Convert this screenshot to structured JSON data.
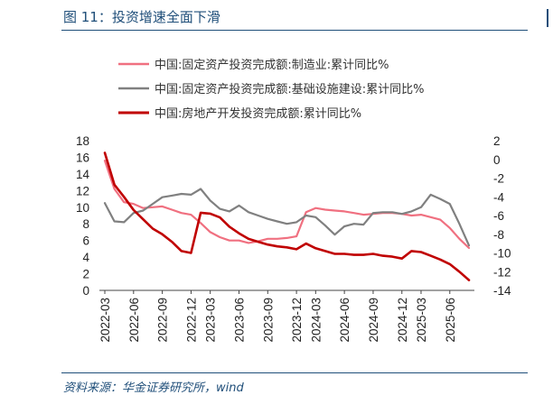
{
  "title": "图 11：投资增速全面下滑",
  "source": "资料来源：华金证券研究所，wind",
  "chart_data": {
    "type": "line",
    "title": "",
    "legend_position": "top-left",
    "grid": false,
    "x": [
      "2022-03",
      "2022-04",
      "2022-05",
      "2022-06",
      "2022-07",
      "2022-08",
      "2022-09",
      "2022-10",
      "2022-11",
      "2022-12",
      "2023-02",
      "2023-03",
      "2023-04",
      "2023-05",
      "2023-06",
      "2023-07",
      "2023-08",
      "2023-09",
      "2023-10",
      "2023-11",
      "2023-12",
      "2024-02",
      "2024-03",
      "2024-04",
      "2024-05",
      "2024-06",
      "2024-07",
      "2024-08",
      "2024-09",
      "2024-10",
      "2024-11",
      "2024-12",
      "2025-02",
      "2025-03",
      "2025-04",
      "2025-05",
      "2025-06",
      "2025-07",
      "2025-08"
    ],
    "xticks": [
      "2022-03",
      "2022-06",
      "2022-09",
      "2022-12",
      "2023-03",
      "2023-06",
      "2023-09",
      "2023-12",
      "2024-03",
      "2024-06",
      "2024-09",
      "2024-12",
      "2025-03",
      "2025-06"
    ],
    "y_left": {
      "min": 0,
      "max": 18,
      "ticks": [
        "0",
        "2",
        "4",
        "6",
        "8",
        "10",
        "12",
        "14",
        "16",
        "18"
      ]
    },
    "y_right": {
      "min": -14,
      "max": 2,
      "ticks": [
        "2",
        "0",
        "-2",
        "-4",
        "-6",
        "-8",
        "-10",
        "-12",
        "-14"
      ]
    },
    "series": [
      {
        "name": "中国:固定资产投资完成额:制造业:累计同比%",
        "axis": "left",
        "color": "#f07080",
        "width": 2.2,
        "values": [
          15.6,
          12.2,
          10.6,
          10.4,
          9.9,
          10.0,
          10.1,
          9.7,
          9.3,
          9.1,
          8.1,
          7.0,
          6.4,
          6.0,
          6.0,
          5.7,
          5.9,
          6.2,
          6.2,
          6.3,
          6.5,
          9.4,
          9.9,
          9.7,
          9.6,
          9.5,
          9.3,
          9.1,
          9.2,
          9.3,
          9.3,
          9.2,
          9.0,
          9.1,
          8.8,
          8.5,
          7.5,
          6.2,
          5.1
        ]
      },
      {
        "name": "中国:固定资产投资完成额:基础设施建设:累计同比%",
        "axis": "left",
        "color": "#808080",
        "width": 2.2,
        "values": [
          10.5,
          8.3,
          8.2,
          9.3,
          9.6,
          10.4,
          11.2,
          11.4,
          11.6,
          11.5,
          12.2,
          10.8,
          9.8,
          9.5,
          10.2,
          9.4,
          9.0,
          8.6,
          8.3,
          8.0,
          8.2,
          9.0,
          8.8,
          7.8,
          6.7,
          7.7,
          8.0,
          7.9,
          9.3,
          9.4,
          9.4,
          9.2,
          9.5,
          10.0,
          11.5,
          11.0,
          10.4,
          8.0,
          5.4
        ]
      },
      {
        "name": "中国:房地产开发投资完成额:累计同比%",
        "axis": "right",
        "color": "#c00000",
        "width": 2.6,
        "values": [
          0.7,
          -2.7,
          -4.0,
          -5.4,
          -6.4,
          -7.4,
          -8.0,
          -8.8,
          -9.8,
          -10.0,
          -5.7,
          -5.8,
          -6.2,
          -7.2,
          -7.9,
          -8.5,
          -8.8,
          -9.1,
          -9.3,
          -9.4,
          -9.6,
          -9.0,
          -9.5,
          -9.8,
          -10.1,
          -10.1,
          -10.2,
          -10.2,
          -10.1,
          -10.3,
          -10.4,
          -10.6,
          -9.8,
          -9.9,
          -10.3,
          -10.7,
          -11.2,
          -12.0,
          -12.9
        ]
      }
    ]
  }
}
